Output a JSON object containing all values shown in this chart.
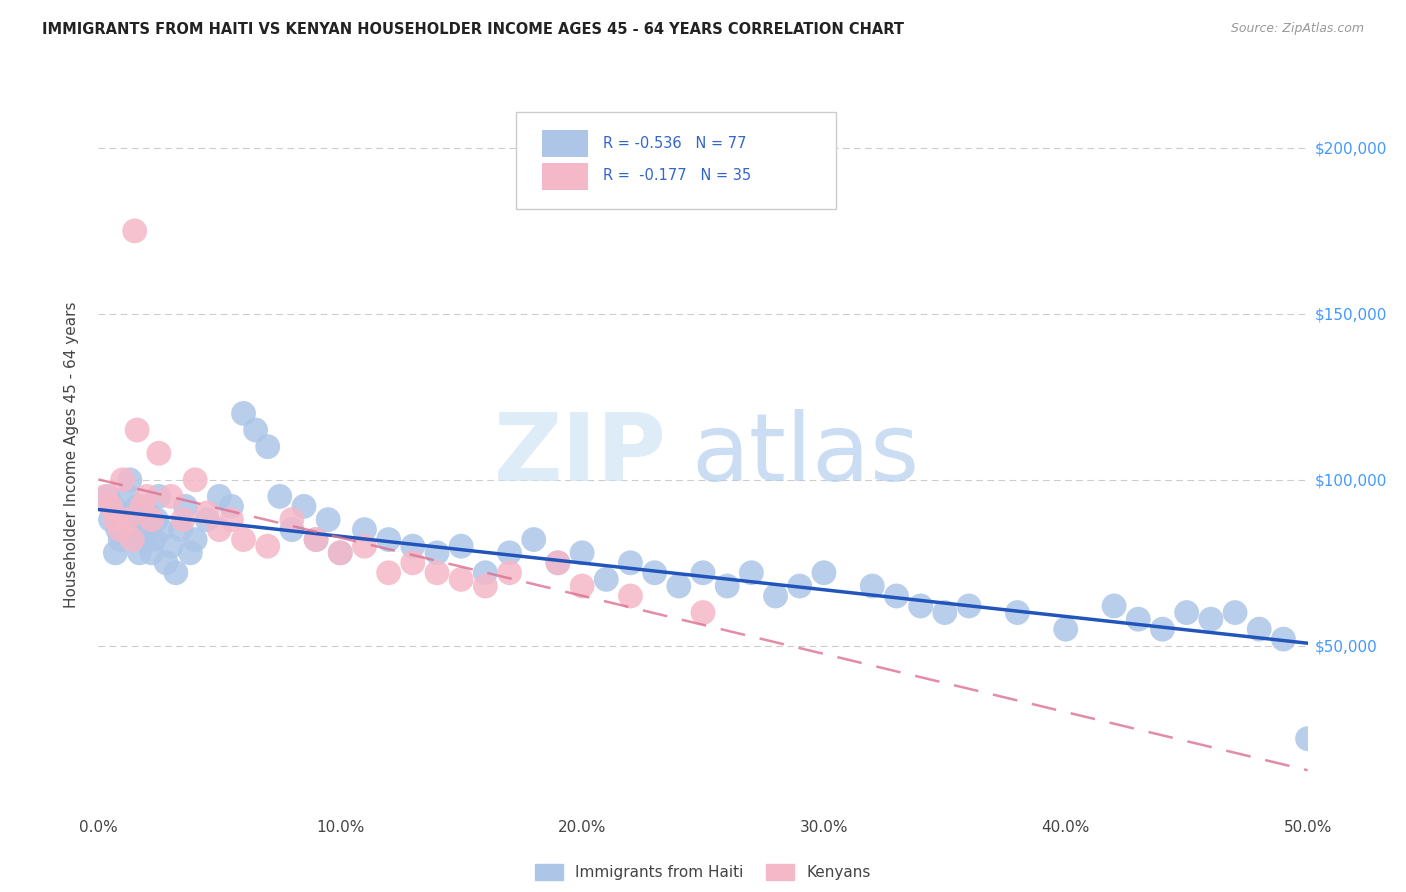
{
  "title": "IMMIGRANTS FROM HAITI VS KENYAN HOUSEHOLDER INCOME AGES 45 - 64 YEARS CORRELATION CHART",
  "source": "Source: ZipAtlas.com",
  "ylabel": "Householder Income Ages 45 - 64 years",
  "ylabel_vals": [
    0,
    50000,
    100000,
    150000,
    200000
  ],
  "ylabel_right_labels": [
    "",
    "$50,000",
    "$100,000",
    "$150,000",
    "$200,000"
  ],
  "xlabel_vals": [
    0,
    10,
    20,
    30,
    40,
    50
  ],
  "R_haiti": -0.536,
  "N_haiti": 77,
  "R_kenya": -0.177,
  "N_kenya": 35,
  "haiti_color": "#adc6e8",
  "kenya_color": "#f5b8c8",
  "haiti_line_color": "#2255bb",
  "kenya_line_color": "#dd7090",
  "legend_label_haiti": "Immigrants from Haiti",
  "legend_label_kenya": "Kenyans",
  "watermark_zip": "ZIP",
  "watermark_atlas": "atlas",
  "haiti_x": [
    0.4,
    0.5,
    0.6,
    0.7,
    0.8,
    0.9,
    1.0,
    1.1,
    1.2,
    1.3,
    1.5,
    1.6,
    1.7,
    1.8,
    1.9,
    2.0,
    2.1,
    2.2,
    2.3,
    2.4,
    2.5,
    2.6,
    2.8,
    3.0,
    3.2,
    3.4,
    3.6,
    3.8,
    4.0,
    4.5,
    5.0,
    5.5,
    6.0,
    6.5,
    7.0,
    7.5,
    8.0,
    8.5,
    9.0,
    9.5,
    10.0,
    11.0,
    12.0,
    13.0,
    14.0,
    15.0,
    16.0,
    17.0,
    18.0,
    19.0,
    20.0,
    21.0,
    22.0,
    23.0,
    24.0,
    25.0,
    26.0,
    27.0,
    28.0,
    29.0,
    30.0,
    32.0,
    33.0,
    34.0,
    35.0,
    36.0,
    38.0,
    40.0,
    42.0,
    43.0,
    44.0,
    45.0,
    46.0,
    47.0,
    48.0,
    49.0,
    50.0
  ],
  "haiti_y": [
    95000,
    88000,
    92000,
    78000,
    85000,
    82000,
    90000,
    88000,
    95000,
    100000,
    85000,
    92000,
    78000,
    88000,
    82000,
    90000,
    85000,
    78000,
    82000,
    88000,
    95000,
    85000,
    75000,
    80000,
    72000,
    85000,
    92000,
    78000,
    82000,
    88000,
    95000,
    92000,
    120000,
    115000,
    110000,
    95000,
    85000,
    92000,
    82000,
    88000,
    78000,
    85000,
    82000,
    80000,
    78000,
    80000,
    72000,
    78000,
    82000,
    75000,
    78000,
    70000,
    75000,
    72000,
    68000,
    72000,
    68000,
    72000,
    65000,
    68000,
    72000,
    68000,
    65000,
    62000,
    60000,
    62000,
    60000,
    55000,
    62000,
    58000,
    55000,
    60000,
    58000,
    60000,
    55000,
    52000,
    22000
  ],
  "kenya_x": [
    0.3,
    0.5,
    0.7,
    0.9,
    1.0,
    1.2,
    1.4,
    1.6,
    1.8,
    2.0,
    2.2,
    2.5,
    3.0,
    3.5,
    4.0,
    4.5,
    5.0,
    5.5,
    6.0,
    7.0,
    8.0,
    9.0,
    10.0,
    11.0,
    12.0,
    13.0,
    14.0,
    15.0,
    16.0,
    17.0,
    19.0,
    20.0,
    22.0,
    25.0,
    1.5
  ],
  "kenya_y": [
    95000,
    92000,
    88000,
    85000,
    100000,
    88000,
    82000,
    115000,
    92000,
    95000,
    88000,
    108000,
    95000,
    88000,
    100000,
    90000,
    85000,
    88000,
    82000,
    80000,
    88000,
    82000,
    78000,
    80000,
    72000,
    75000,
    72000,
    70000,
    68000,
    72000,
    75000,
    68000,
    65000,
    60000,
    175000
  ]
}
